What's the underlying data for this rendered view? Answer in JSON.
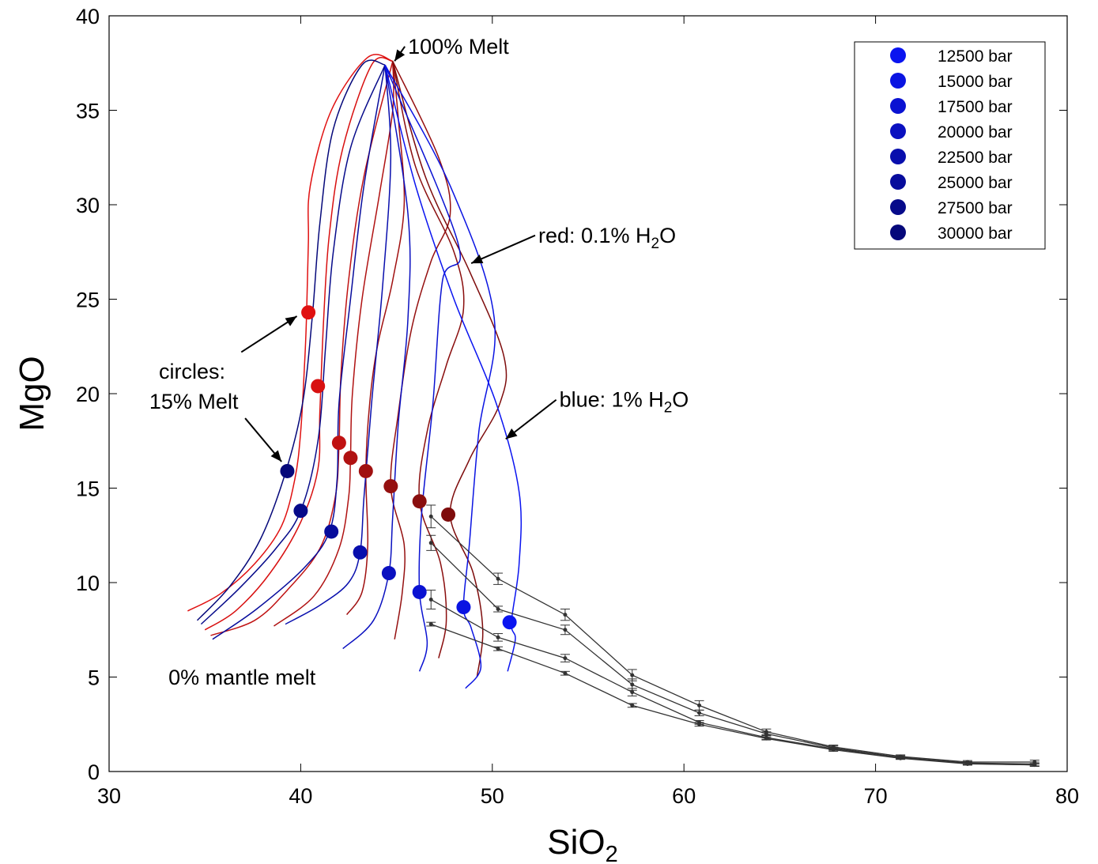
{
  "chart_data": {
    "type": "line",
    "xlabel": "SiO",
    "xlabel_sub": "2",
    "ylabel": "MgO",
    "xlim": [
      30,
      80
    ],
    "ylim": [
      0,
      40
    ],
    "xticks": [
      "30",
      "40",
      "50",
      "60",
      "70",
      "80"
    ],
    "yticks": [
      "0",
      "5",
      "10",
      "15",
      "20",
      "25",
      "30",
      "35",
      "40"
    ],
    "grid": false,
    "legend_position": "top-right",
    "legend": [
      {
        "label": "12500 bar",
        "color": "#0a14f0"
      },
      {
        "label": "15000 bar",
        "color": "#0a14e2"
      },
      {
        "label": "17500 bar",
        "color": "#0a12d2"
      },
      {
        "label": "20000 bar",
        "color": "#0a10c0"
      },
      {
        "label": "22500 bar",
        "color": "#080ead"
      },
      {
        "label": "25000 bar",
        "color": "#070c9c"
      },
      {
        "label": "27500 bar",
        "color": "#060a8a"
      },
      {
        "label": "30000 bar",
        "color": "#05087a"
      }
    ],
    "annotations": [
      {
        "text": "100% Melt",
        "x": 45.6,
        "y": 38.0,
        "arrow_to": [
          44.9,
          37.6
        ]
      },
      {
        "text": "red: 0.1% H",
        "sub": "2",
        "tail": "O",
        "x": 52.4,
        "y": 28.0,
        "arrow_to": [
          48.9,
          26.9
        ]
      },
      {
        "text": "blue: 1% H",
        "sub": "2",
        "tail": "O",
        "x": 53.5,
        "y": 19.3,
        "arrow_to": [
          50.7,
          17.6
        ]
      },
      {
        "text": "circles:",
        "x": 32.6,
        "y": 20.8
      },
      {
        "text": "15% Melt",
        "x": 32.1,
        "y": 19.2
      },
      {
        "text": "0% mantle melt",
        "x": 33.1,
        "y": 4.6
      }
    ],
    "annotation_arrows_extra": [
      {
        "from": [
          36.9,
          22.2
        ],
        "to": [
          39.8,
          24.1
        ]
      },
      {
        "from": [
          37.1,
          18.7
        ],
        "to": [
          39.0,
          16.4
        ]
      }
    ],
    "peak_point": [
      44.8,
      37.6
    ],
    "red_curves": [
      {
        "color": "#e01010",
        "points": [
          [
            34.1,
            8.5
          ],
          [
            35.8,
            9.4
          ],
          [
            37.6,
            11.0
          ],
          [
            39.0,
            13.0
          ],
          [
            39.7,
            15.5
          ],
          [
            40.0,
            18.0
          ],
          [
            40.2,
            21.5
          ],
          [
            40.3,
            24.0
          ],
          [
            40.4,
            28.0
          ],
          [
            40.5,
            31.0
          ],
          [
            41.6,
            35.0
          ],
          [
            43.5,
            37.8
          ],
          [
            44.8,
            37.6
          ]
        ],
        "dot": [
          40.4,
          24.3
        ]
      },
      {
        "color": "#d81010",
        "points": [
          [
            35.0,
            7.5
          ],
          [
            36.6,
            8.5
          ],
          [
            38.4,
            10.5
          ],
          [
            40.0,
            13.2
          ],
          [
            40.9,
            16.0
          ],
          [
            41.0,
            19.0
          ],
          [
            41.2,
            24.0
          ],
          [
            41.5,
            28.5
          ],
          [
            42.2,
            33.0
          ],
          [
            43.7,
            37.4
          ],
          [
            44.8,
            37.6
          ]
        ],
        "dot": [
          40.9,
          20.4
        ]
      },
      {
        "color": "#c01212",
        "points": [
          [
            35.3,
            7.2
          ],
          [
            37.6,
            8.0
          ],
          [
            39.3,
            9.6
          ],
          [
            41.0,
            11.8
          ],
          [
            41.8,
            14.5
          ],
          [
            42.0,
            17.3
          ],
          [
            42.1,
            21.0
          ],
          [
            42.5,
            26.0
          ],
          [
            43.3,
            31.5
          ],
          [
            44.8,
            37.6
          ]
        ],
        "dot": [
          42.0,
          17.4
        ]
      },
      {
        "color": "#b01212",
        "points": [
          [
            38.6,
            7.7
          ],
          [
            40.7,
            9.3
          ],
          [
            42.0,
            11.8
          ],
          [
            42.5,
            14.5
          ],
          [
            42.6,
            16.6
          ],
          [
            42.7,
            20.0
          ],
          [
            43.2,
            25.0
          ],
          [
            44.1,
            30.5
          ],
          [
            44.8,
            35.0
          ],
          [
            44.8,
            37.6
          ]
        ],
        "dot": [
          42.6,
          16.6
        ]
      },
      {
        "color": "#a01010",
        "points": [
          [
            42.4,
            8.3
          ],
          [
            43.2,
            9.5
          ],
          [
            43.5,
            12.0
          ],
          [
            43.4,
            15.9
          ],
          [
            43.6,
            19.5
          ],
          [
            44.0,
            22.5
          ],
          [
            44.8,
            26.0
          ],
          [
            45.4,
            30.0
          ],
          [
            45.1,
            34.5
          ],
          [
            44.8,
            37.6
          ]
        ],
        "dot": [
          43.4,
          15.9
        ]
      },
      {
        "color": "#951010",
        "points": [
          [
            44.9,
            7.0
          ],
          [
            45.3,
            9.5
          ],
          [
            45.4,
            12.0
          ],
          [
            44.7,
            15.1
          ],
          [
            45.1,
            19.0
          ],
          [
            45.8,
            23.5
          ],
          [
            46.8,
            27.0
          ],
          [
            47.8,
            29.5
          ],
          [
            47.2,
            32.5
          ],
          [
            44.8,
            37.6
          ]
        ],
        "dot": [
          44.7,
          15.1
        ]
      },
      {
        "color": "#8a0e0e",
        "points": [
          [
            47.2,
            6.0
          ],
          [
            47.6,
            8.0
          ],
          [
            47.3,
            11.0
          ],
          [
            46.2,
            14.3
          ],
          [
            46.6,
            18.0
          ],
          [
            47.6,
            21.5
          ],
          [
            48.5,
            24.5
          ],
          [
            48.0,
            27.5
          ],
          [
            46.0,
            32.0
          ],
          [
            44.8,
            37.6
          ]
        ],
        "dot": [
          46.2,
          14.3
        ]
      },
      {
        "color": "#7e0c0c",
        "points": [
          [
            49.2,
            5.0
          ],
          [
            49.5,
            7.5
          ],
          [
            49.0,
            10.5
          ],
          [
            47.8,
            13.6
          ],
          [
            48.8,
            16.5
          ],
          [
            50.4,
            19.5
          ],
          [
            50.6,
            22.0
          ],
          [
            48.8,
            26.5
          ],
          [
            46.5,
            31.5
          ],
          [
            44.8,
            37.6
          ]
        ],
        "dot": [
          47.7,
          13.6
        ]
      }
    ],
    "blue_curves": [
      {
        "color": "#05087a",
        "points": [
          [
            34.6,
            8.0
          ],
          [
            36.3,
            9.8
          ],
          [
            37.9,
            12.3
          ],
          [
            39.2,
            15.8
          ],
          [
            40.1,
            19.5
          ],
          [
            40.6,
            24.0
          ],
          [
            41.0,
            29.0
          ],
          [
            41.7,
            34.0
          ],
          [
            43.2,
            37.4
          ],
          [
            44.4,
            37.4
          ]
        ],
        "dot": [
          39.3,
          15.9
        ]
      },
      {
        "color": "#060a8a",
        "points": [
          [
            34.8,
            7.8
          ],
          [
            36.8,
            9.7
          ],
          [
            38.7,
            11.8
          ],
          [
            40.0,
            13.8
          ],
          [
            40.9,
            17.5
          ],
          [
            41.3,
            22.5
          ],
          [
            41.7,
            27.5
          ],
          [
            42.6,
            33.0
          ],
          [
            44.4,
            37.4
          ]
        ],
        "dot": [
          40.0,
          13.8
        ]
      },
      {
        "color": "#070c9c",
        "points": [
          [
            35.4,
            7.0
          ],
          [
            37.7,
            8.6
          ],
          [
            40.2,
            10.8
          ],
          [
            41.5,
            12.7
          ],
          [
            41.9,
            15.5
          ],
          [
            42.0,
            19.5
          ],
          [
            42.6,
            25.0
          ],
          [
            43.3,
            31.0
          ],
          [
            44.4,
            37.4
          ]
        ],
        "dot": [
          41.6,
          12.7
        ]
      },
      {
        "color": "#080ead",
        "points": [
          [
            39.2,
            7.8
          ],
          [
            41.0,
            8.8
          ],
          [
            42.5,
            10.0
          ],
          [
            43.1,
            11.6
          ],
          [
            43.3,
            14.5
          ],
          [
            43.7,
            19.5
          ],
          [
            44.3,
            26.0
          ],
          [
            44.7,
            32.5
          ],
          [
            44.4,
            37.4
          ]
        ],
        "dot": [
          43.1,
          11.6
        ]
      },
      {
        "color": "#0a10c0",
        "points": [
          [
            42.2,
            6.5
          ],
          [
            43.8,
            8.0
          ],
          [
            44.6,
            10.5
          ],
          [
            44.8,
            13.5
          ],
          [
            45.1,
            18.5
          ],
          [
            45.6,
            24.0
          ],
          [
            45.6,
            29.5
          ],
          [
            44.4,
            37.4
          ]
        ],
        "dot": [
          44.6,
          10.5
        ]
      },
      {
        "color": "#0a12d2",
        "points": [
          [
            46.2,
            5.3
          ],
          [
            46.6,
            6.8
          ],
          [
            46.2,
            9.5
          ],
          [
            46.3,
            13.5
          ],
          [
            46.9,
            19.5
          ],
          [
            47.4,
            26.0
          ],
          [
            48.2,
            28.0
          ],
          [
            44.4,
            37.4
          ]
        ],
        "dot": [
          46.2,
          9.5
        ]
      },
      {
        "color": "#0a14e2",
        "points": [
          [
            48.6,
            4.4
          ],
          [
            49.4,
            5.5
          ],
          [
            48.9,
            7.6
          ],
          [
            48.5,
            8.7
          ],
          [
            48.8,
            12.0
          ],
          [
            49.3,
            18.0
          ],
          [
            50.1,
            24.0
          ],
          [
            47.8,
            31.0
          ],
          [
            44.4,
            37.4
          ]
        ],
        "dot": [
          48.5,
          8.7
        ]
      },
      {
        "color": "#0a14f0",
        "points": [
          [
            50.8,
            5.3
          ],
          [
            51.2,
            7.0
          ],
          [
            51.0,
            7.9
          ],
          [
            51.4,
            11.0
          ],
          [
            51.4,
            14.8
          ],
          [
            50.2,
            19.5
          ],
          [
            48.0,
            25.0
          ],
          [
            46.0,
            31.0
          ],
          [
            44.4,
            37.4
          ]
        ],
        "dot": [
          50.9,
          7.9
        ]
      }
    ],
    "data_series": [
      {
        "color": "#333333",
        "points": [
          [
            46.8,
            13.5
          ],
          [
            50.3,
            10.2
          ],
          [
            53.8,
            8.3
          ],
          [
            57.3,
            5.1
          ],
          [
            60.8,
            3.5
          ],
          [
            64.3,
            2.1
          ],
          [
            67.8,
            1.3
          ],
          [
            71.3,
            0.8
          ],
          [
            74.8,
            0.5
          ],
          [
            78.3,
            0.5
          ]
        ],
        "err": [
          0.6,
          0.3,
          0.3,
          0.3,
          0.25,
          0.15,
          0.1,
          0.08,
          0.08,
          0.1
        ]
      },
      {
        "color": "#333333",
        "points": [
          [
            46.8,
            12.1
          ],
          [
            50.3,
            8.6
          ],
          [
            53.8,
            7.5
          ],
          [
            57.3,
            4.6
          ],
          [
            60.8,
            3.1
          ],
          [
            64.3,
            2.0
          ],
          [
            67.8,
            1.25
          ],
          [
            71.3,
            0.75
          ],
          [
            74.8,
            0.45
          ],
          [
            78.3,
            0.4
          ]
        ],
        "err": [
          0.4,
          0.15,
          0.25,
          0.3,
          0.15,
          0.1,
          0.1,
          0.08,
          0.08,
          0.1
        ]
      },
      {
        "color": "#333333",
        "points": [
          [
            46.8,
            9.1
          ],
          [
            50.3,
            7.1
          ],
          [
            53.8,
            6.0
          ],
          [
            57.3,
            4.2
          ],
          [
            60.8,
            2.6
          ],
          [
            64.3,
            1.8
          ],
          [
            67.8,
            1.2
          ],
          [
            71.3,
            0.75
          ],
          [
            74.8,
            0.42
          ],
          [
            78.3,
            0.35
          ]
        ],
        "err": [
          0.5,
          0.2,
          0.2,
          0.2,
          0.1,
          0.1,
          0.08,
          0.08,
          0.08,
          0.08
        ]
      },
      {
        "color": "#333333",
        "points": [
          [
            46.8,
            7.8
          ],
          [
            50.3,
            6.5
          ],
          [
            53.8,
            5.2
          ],
          [
            57.3,
            3.5
          ],
          [
            60.8,
            2.5
          ],
          [
            64.3,
            1.75
          ],
          [
            67.8,
            1.15
          ],
          [
            71.3,
            0.7
          ],
          [
            74.8,
            0.4
          ],
          [
            78.3,
            0.35
          ]
        ],
        "err": [
          0.1,
          0.1,
          0.1,
          0.1,
          0.1,
          0.08,
          0.08,
          0.06,
          0.06,
          0.06
        ]
      }
    ]
  }
}
